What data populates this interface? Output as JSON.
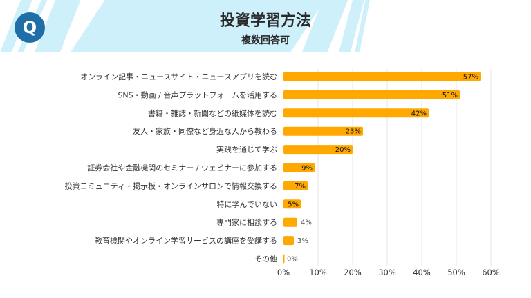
{
  "header": {
    "logo_letter": "Q",
    "title": "投資学習方法",
    "subtitle": "複数回答可"
  },
  "colors": {
    "bar": "#FFA800",
    "band": "#CDF0FB",
    "logo": "#1F6EA8"
  },
  "chart_data": {
    "type": "bar",
    "orientation": "horizontal",
    "title": "投資学習方法",
    "subtitle": "複数回答可",
    "categories": [
      "オンライン記事・ニュースサイト・ニュースアプリを読む",
      "SNS・動画 / 音声プラットフォームを活用する",
      "書籍・雑誌・新聞などの紙媒体を読む",
      "友人・家族・同僚など身近な人から教わる",
      "実践を通じて学ぶ",
      "証券会社や金融機関のセミナー / ウェビナーに参加する",
      "投資コミュニティ・掲示板・オンラインサロンで情報交換する",
      "特に学んでいない",
      "専門家に相談する",
      "教育機関やオンライン学習サービスの講座を受講する",
      "その他"
    ],
    "values": [
      57,
      51,
      42,
      23,
      20,
      9,
      7,
      5,
      4,
      3,
      0
    ],
    "data_labels": [
      "57%",
      "51%",
      "42%",
      "23%",
      "20%",
      "9%",
      "7%",
      "5%",
      "4%",
      "3%",
      "0%"
    ],
    "xlim": [
      0,
      60
    ],
    "x_ticks": [
      "0%",
      "10%",
      "20%",
      "30%",
      "40%",
      "50%",
      "60%"
    ],
    "grid": true
  }
}
